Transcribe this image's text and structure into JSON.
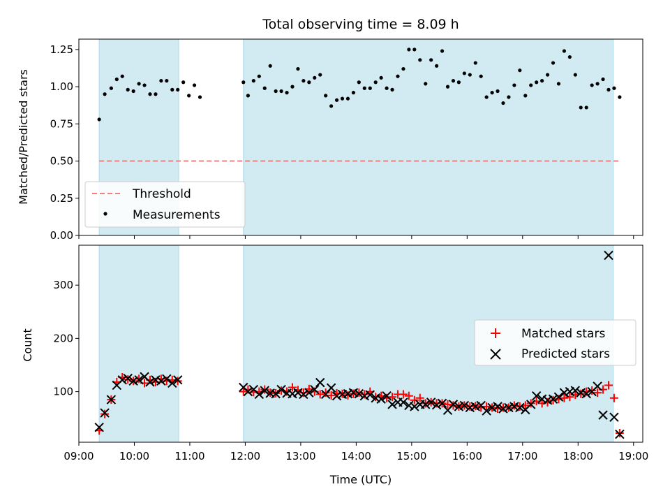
{
  "chart_data": [
    {
      "type": "scatter",
      "title": "Total observing time = 8.09 h",
      "ylabel": "Matched/Predicted stars",
      "xlabel": "",
      "xlim": [
        "09:00",
        "19:10"
      ],
      "ylim": [
        0,
        1.32
      ],
      "yticks": [
        "0.00",
        "0.25",
        "0.50",
        "0.75",
        "1.00",
        "1.25"
      ],
      "shaded_intervals": [
        [
          "09:22",
          "10:48"
        ],
        [
          "11:58",
          "18:38"
        ]
      ],
      "shade_color": "#add8e6",
      "threshold": {
        "name": "Threshold",
        "value": 0.5,
        "x_range": [
          "09:22",
          "18:45"
        ],
        "color": "#f08080"
      },
      "legend": {
        "placement": "lower-left",
        "entries": [
          "Threshold",
          "Measurements"
        ]
      },
      "series": [
        {
          "name": "Measurements",
          "color": "#000000",
          "x": [
            "09:22",
            "09:28",
            "09:35",
            "09:41",
            "09:47",
            "09:53",
            "09:59",
            "10:05",
            "10:11",
            "10:17",
            "10:23",
            "10:29",
            "10:35",
            "10:41",
            "10:47",
            "10:53",
            "10:59",
            "11:05",
            "11:11",
            "11:58",
            "12:03",
            "12:09",
            "12:15",
            "12:21",
            "12:27",
            "12:33",
            "12:39",
            "12:45",
            "12:51",
            "12:57",
            "13:03",
            "13:09",
            "13:15",
            "13:21",
            "13:27",
            "13:33",
            "13:39",
            "13:45",
            "13:51",
            "13:57",
            "14:03",
            "14:09",
            "14:15",
            "14:21",
            "14:27",
            "14:33",
            "14:39",
            "14:45",
            "14:51",
            "14:57",
            "15:03",
            "15:09",
            "15:15",
            "15:21",
            "15:27",
            "15:33",
            "15:39",
            "15:45",
            "15:51",
            "15:57",
            "16:03",
            "16:09",
            "16:15",
            "16:21",
            "16:27",
            "16:33",
            "16:39",
            "16:45",
            "16:51",
            "16:57",
            "17:03",
            "17:09",
            "17:15",
            "17:21",
            "17:27",
            "17:33",
            "17:39",
            "17:45",
            "17:51",
            "17:57",
            "18:03",
            "18:09",
            "18:15",
            "18:21",
            "18:27",
            "18:33",
            "18:39",
            "18:45"
          ],
          "y": [
            0.78,
            0.95,
            0.99,
            1.05,
            1.07,
            0.98,
            0.97,
            1.02,
            1.01,
            0.95,
            0.95,
            1.04,
            1.04,
            0.98,
            0.98,
            1.03,
            0.94,
            1.01,
            0.93,
            1.03,
            0.94,
            1.04,
            1.07,
            0.99,
            1.14,
            0.97,
            0.97,
            0.96,
            1.0,
            1.12,
            1.04,
            1.03,
            1.06,
            1.08,
            0.94,
            0.87,
            0.91,
            0.92,
            0.92,
            0.96,
            1.03,
            0.99,
            0.99,
            1.03,
            1.06,
            0.99,
            0.98,
            1.07,
            1.12,
            1.25,
            1.25,
            1.18,
            1.02,
            1.18,
            1.14,
            1.24,
            1.0,
            1.04,
            1.03,
            1.09,
            1.08,
            1.16,
            1.07,
            0.93,
            0.96,
            0.97,
            0.89,
            0.93,
            1.01,
            1.11,
            0.94,
            1.01,
            1.03,
            1.04,
            1.08,
            1.16,
            1.02,
            1.24,
            1.2,
            1.08,
            0.86,
            0.86,
            1.01,
            1.02,
            1.05,
            0.98,
            0.99,
            0.93
          ]
        }
      ]
    },
    {
      "type": "scatter",
      "title": "",
      "ylabel": "Count",
      "xlabel": "Time (UTC)",
      "xlim": [
        "09:00",
        "19:10"
      ],
      "ylim": [
        5,
        375
      ],
      "yticks": [
        "100",
        "200",
        "300"
      ],
      "xticks": [
        "09:00",
        "10:00",
        "11:00",
        "12:00",
        "13:00",
        "14:00",
        "15:00",
        "16:00",
        "17:00",
        "18:00",
        "19:00"
      ],
      "shaded_intervals": [
        [
          "09:22",
          "10:48"
        ],
        [
          "11:58",
          "18:38"
        ]
      ],
      "shade_color": "#add8e6",
      "legend": {
        "placement": "center-right",
        "entries": [
          "Matched stars",
          "Predicted stars"
        ]
      },
      "series": [
        {
          "name": "Matched stars",
          "marker": "plus",
          "color": "#ff0000",
          "x": [
            "09:22",
            "09:28",
            "09:35",
            "09:41",
            "09:47",
            "09:53",
            "09:59",
            "10:05",
            "10:11",
            "10:17",
            "10:23",
            "10:29",
            "10:35",
            "10:41",
            "10:47",
            "11:58",
            "12:03",
            "12:09",
            "12:15",
            "12:21",
            "12:27",
            "12:33",
            "12:39",
            "12:45",
            "12:51",
            "12:57",
            "13:03",
            "13:09",
            "13:15",
            "13:21",
            "13:27",
            "13:33",
            "13:39",
            "13:45",
            "13:51",
            "13:57",
            "14:03",
            "14:09",
            "14:15",
            "14:21",
            "14:27",
            "14:33",
            "14:39",
            "14:45",
            "14:51",
            "14:57",
            "15:03",
            "15:09",
            "15:15",
            "15:21",
            "15:27",
            "15:33",
            "15:39",
            "15:45",
            "15:51",
            "15:57",
            "16:03",
            "16:09",
            "16:15",
            "16:21",
            "16:27",
            "16:33",
            "16:39",
            "16:45",
            "16:51",
            "16:57",
            "17:03",
            "17:09",
            "17:15",
            "17:21",
            "17:27",
            "17:33",
            "17:39",
            "17:45",
            "17:51",
            "17:57",
            "18:03",
            "18:09",
            "18:15",
            "18:21",
            "18:27",
            "18:33",
            "18:39",
            "18:45"
          ],
          "y": [
            27,
            58,
            85,
            118,
            127,
            123,
            120,
            124,
            116,
            122,
            118,
            124,
            120,
            122,
            120,
            100,
            104,
            99,
            100,
            104,
            98,
            97,
            102,
            100,
            108,
            103,
            98,
            105,
            100,
            95,
            98,
            93,
            97,
            96,
            93,
            96,
            98,
            95,
            100,
            90,
            92,
            88,
            90,
            95,
            95,
            92,
            84,
            88,
            78,
            80,
            78,
            78,
            76,
            74,
            72,
            74,
            72,
            73,
            70,
            72,
            70,
            68,
            70,
            70,
            74,
            72,
            74,
            78,
            82,
            78,
            80,
            84,
            86,
            88,
            90,
            94,
            96,
            100,
            102,
            98,
            104,
            112,
            88,
            22
          ]
        },
        {
          "name": "Predicted stars",
          "marker": "x",
          "color": "#000000",
          "x": [
            "09:22",
            "09:28",
            "09:35",
            "09:41",
            "09:47",
            "09:53",
            "09:59",
            "10:05",
            "10:11",
            "10:17",
            "10:23",
            "10:29",
            "10:35",
            "10:41",
            "10:47",
            "11:58",
            "12:03",
            "12:09",
            "12:15",
            "12:21",
            "12:27",
            "12:33",
            "12:39",
            "12:45",
            "12:51",
            "12:57",
            "13:03",
            "13:09",
            "13:15",
            "13:21",
            "13:27",
            "13:33",
            "13:39",
            "13:45",
            "13:51",
            "13:57",
            "14:03",
            "14:09",
            "14:15",
            "14:21",
            "14:27",
            "14:33",
            "14:39",
            "14:45",
            "14:51",
            "14:57",
            "15:03",
            "15:09",
            "15:15",
            "15:21",
            "15:27",
            "15:33",
            "15:39",
            "15:45",
            "15:51",
            "15:57",
            "16:03",
            "16:09",
            "16:15",
            "16:21",
            "16:27",
            "16:33",
            "16:39",
            "16:45",
            "16:51",
            "16:57",
            "17:03",
            "17:09",
            "17:15",
            "17:21",
            "17:27",
            "17:33",
            "17:39",
            "17:45",
            "17:51",
            "17:57",
            "18:03",
            "18:09",
            "18:15",
            "18:21",
            "18:27",
            "18:33",
            "18:39",
            "18:45"
          ],
          "y": [
            33,
            60,
            85,
            112,
            122,
            125,
            120,
            122,
            128,
            118,
            122,
            120,
            124,
            116,
            122,
            108,
            100,
            104,
            95,
            102,
            97,
            96,
            104,
            97,
            96,
            98,
            95,
            98,
            104,
            117,
            95,
            107,
            92,
            95,
            96,
            98,
            96,
            92,
            94,
            88,
            86,
            92,
            76,
            80,
            80,
            74,
            72,
            76,
            76,
            80,
            75,
            78,
            65,
            76,
            72,
            74,
            70,
            72,
            74,
            64,
            70,
            72,
            68,
            70,
            72,
            70,
            66,
            76,
            92,
            86,
            84,
            86,
            90,
            98,
            100,
            102,
            98,
            96,
            100,
            110,
            56,
            356,
            52,
            20
          ]
        }
      ]
    }
  ]
}
